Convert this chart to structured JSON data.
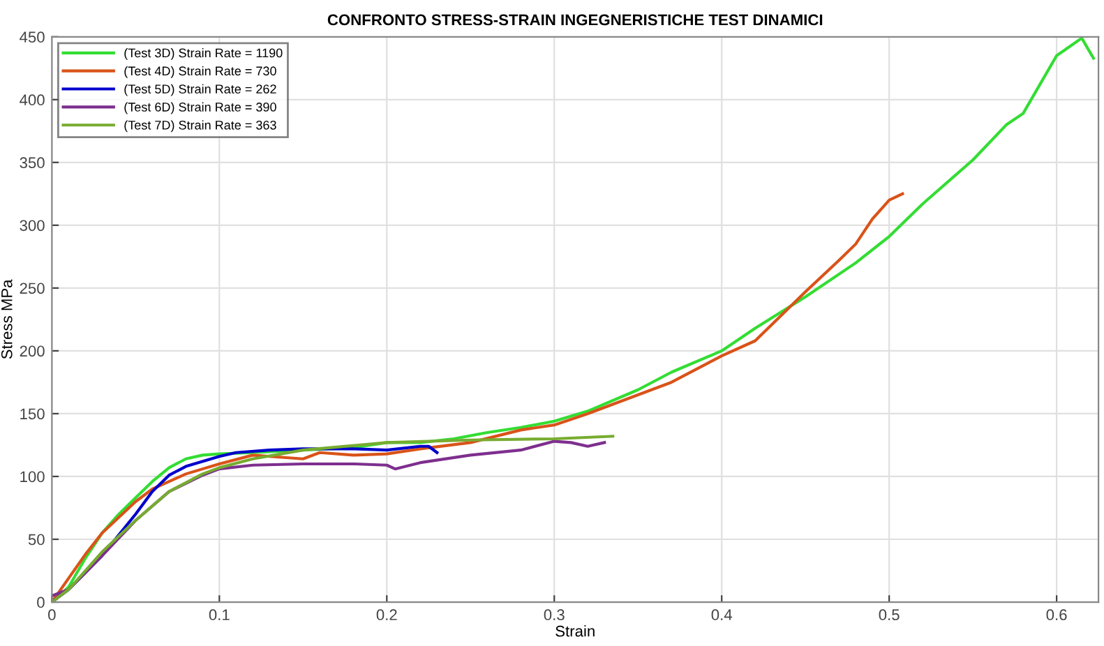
{
  "chart_data": {
    "type": "line",
    "title": "CONFRONTO STRESS-STRAIN INGEGNERISTICHE TEST DINAMICI",
    "xlabel": "Strain",
    "ylabel": "Stress MPa",
    "xlim": [
      0,
      0.625
    ],
    "ylim": [
      0,
      450
    ],
    "xticks": [
      0,
      0.1,
      0.2,
      0.3,
      0.4,
      0.5,
      0.6
    ],
    "yticks": [
      0,
      50,
      100,
      150,
      200,
      250,
      300,
      350,
      400,
      450
    ],
    "grid": true,
    "legend": "top left",
    "series": [
      {
        "name": "(Test 3D) Strain Rate = 1190",
        "color": "#33dd33",
        "x": [
          0,
          0.01,
          0.02,
          0.03,
          0.04,
          0.05,
          0.06,
          0.07,
          0.08,
          0.09,
          0.1,
          0.12,
          0.15,
          0.18,
          0.2,
          0.22,
          0.24,
          0.26,
          0.28,
          0.3,
          0.32,
          0.35,
          0.37,
          0.4,
          0.42,
          0.45,
          0.48,
          0.5,
          0.52,
          0.55,
          0.57,
          0.58,
          0.6,
          0.615,
          0.622
        ],
        "values": [
          0,
          12,
          35,
          55,
          70,
          83,
          96,
          107,
          114,
          117,
          118,
          119,
          121,
          123,
          127,
          127,
          130,
          135,
          139,
          144,
          152,
          169,
          183,
          200,
          218,
          243,
          270,
          291,
          317,
          352,
          380,
          389,
          435,
          449,
          433
        ]
      },
      {
        "name": "(Test 4D) Strain Rate = 730",
        "color": "#d95319",
        "x": [
          0,
          0.02,
          0.03,
          0.05,
          0.06,
          0.08,
          0.1,
          0.12,
          0.14,
          0.15,
          0.16,
          0.18,
          0.2,
          0.22,
          0.25,
          0.28,
          0.3,
          0.32,
          0.35,
          0.37,
          0.4,
          0.42,
          0.45,
          0.47,
          0.48,
          0.49,
          0.5,
          0.508
        ],
        "values": [
          0,
          38,
          55,
          80,
          90,
          102,
          110,
          117,
          115,
          114,
          119,
          117,
          118,
          122,
          127,
          137,
          141,
          150,
          165,
          175,
          196,
          208,
          247,
          272,
          285,
          305,
          320,
          325
        ]
      },
      {
        "name": "(Test 5D) Strain Rate = 262",
        "color": "#0000cc",
        "x": [
          0,
          0.01,
          0.03,
          0.05,
          0.06,
          0.07,
          0.08,
          0.1,
          0.11,
          0.13,
          0.15,
          0.18,
          0.2,
          0.22,
          0.225,
          0.23
        ],
        "values": [
          0,
          10,
          37,
          70,
          88,
          101,
          108,
          116,
          119,
          121,
          122,
          122,
          121,
          124,
          124,
          119
        ]
      },
      {
        "name": "(Test 6D) Strain Rate = 390",
        "color": "#7e2f8e",
        "x": [
          0,
          0.01,
          0.03,
          0.05,
          0.07,
          0.09,
          0.1,
          0.12,
          0.15,
          0.18,
          0.2,
          0.205,
          0.22,
          0.25,
          0.28,
          0.3,
          0.31,
          0.32,
          0.33
        ],
        "values": [
          5,
          10,
          37,
          65,
          88,
          101,
          106,
          109,
          110,
          110,
          109,
          106,
          111,
          117,
          121,
          128,
          127,
          124,
          127
        ]
      },
      {
        "name": "(Test 7D) Strain Rate = 363",
        "color": "#77ac30",
        "x": [
          0,
          0.01,
          0.03,
          0.05,
          0.07,
          0.09,
          0.1,
          0.12,
          0.15,
          0.2,
          0.25,
          0.3,
          0.335
        ],
        "values": [
          0,
          10,
          40,
          65,
          88,
          102,
          107,
          114,
          121,
          127,
          129,
          130,
          132
        ]
      }
    ]
  }
}
